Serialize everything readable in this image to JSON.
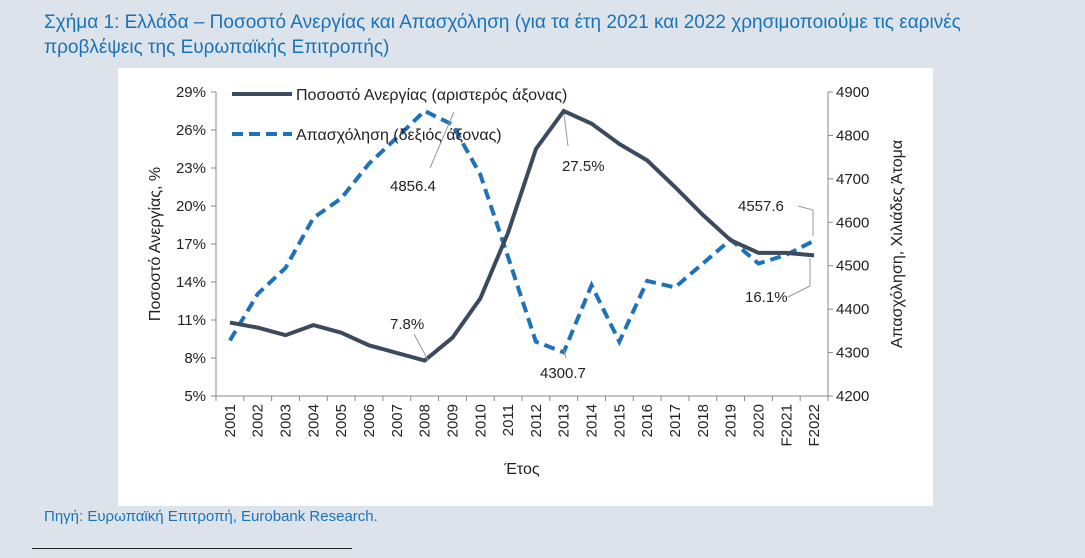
{
  "page": {
    "title": "Σχήμα 1: Ελλάδα – Ποσοστό Ανεργίας και Απασχόληση (για τα έτη 2021 και 2022 χρησιμοποιούμε τις εαρινές προβλέψεις της Ευρωπαϊκής Επιτροπής)",
    "source": "Πηγή: Ευρωπαϊκή Επιτροπή, Eurobank Research."
  },
  "colors": {
    "unemployment": "#3c4a5e",
    "employment": "#1f72b8",
    "title": "#1a73b8",
    "background": "#dde3ea"
  },
  "chart_data": {
    "type": "line",
    "categories": [
      "2001",
      "2002",
      "2003",
      "2004",
      "2005",
      "2006",
      "2007",
      "2008",
      "2009",
      "2010",
      "2011",
      "2012",
      "2013",
      "2014",
      "2015",
      "2016",
      "2017",
      "2018",
      "2019",
      "2020",
      "F2021",
      "F2022"
    ],
    "series": [
      {
        "name": "Ποσοστό Ανεργίας (αριστερός άξονας)",
        "axis": "left",
        "style": "solid",
        "values": [
          10.8,
          10.4,
          9.8,
          10.6,
          10.0,
          9.0,
          8.4,
          7.8,
          9.6,
          12.7,
          17.9,
          24.5,
          27.5,
          26.5,
          24.9,
          23.6,
          21.5,
          19.3,
          17.3,
          16.3,
          16.3,
          16.1
        ]
      },
      {
        "name": "Απασχόληση (δεξιός άξονας)",
        "axis": "right",
        "style": "dashed",
        "values": [
          4328,
          4435,
          4495,
          4610,
          4655,
          4735,
          4795,
          4856.4,
          4825,
          4710,
          4520,
          4325,
          4300.7,
          4455,
          4325,
          4465,
          4450,
          4505,
          4560,
          4505,
          4525,
          4557.6
        ]
      }
    ],
    "y_left": {
      "label": "Ποσοστό Ανεργίας, %",
      "lim": [
        5,
        29
      ],
      "ticks": [
        "5%",
        "8%",
        "11%",
        "14%",
        "17%",
        "20%",
        "23%",
        "26%",
        "29%"
      ]
    },
    "y_right": {
      "label": "Απασχόληση, Χιλιάδες Άτομα",
      "lim": [
        4200,
        4900
      ],
      "ticks": [
        "4200",
        "4300",
        "4400",
        "4500",
        "4600",
        "4700",
        "4800",
        "4900"
      ]
    },
    "xlabel": "Έτος",
    "legend_position": "top-left",
    "annotations": {
      "unemp_min": "7.8%",
      "unemp_max": "27.5%",
      "unemp_last": "16.1%",
      "emp_max": "4856.4",
      "emp_min": "4300.7",
      "emp_last": "4557.6"
    }
  }
}
